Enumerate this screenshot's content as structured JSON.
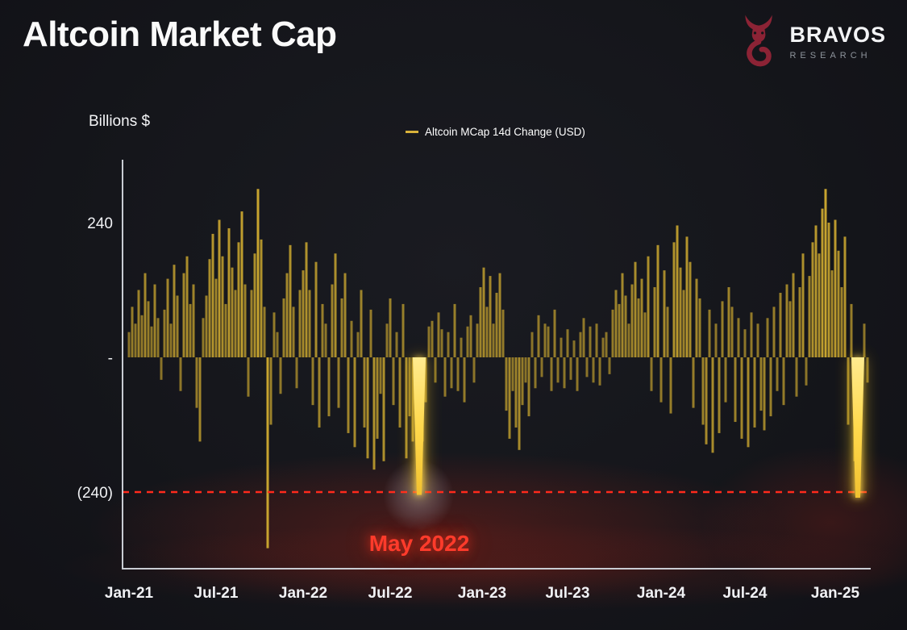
{
  "header": {
    "title": "Altcoin Market Cap"
  },
  "brand": {
    "name": "BRAVOS",
    "subtitle": "RESEARCH",
    "logo_color": "#8c2335"
  },
  "chart_data": {
    "type": "bar",
    "title": "Altcoin Market Cap",
    "ylabel": "Billions $",
    "legend": "Altcoin MCap 14d Change (USD)",
    "ylim": [
      -360,
      320
    ],
    "grid": false,
    "y_ticks": [
      {
        "label": "240",
        "value": 240
      },
      {
        "label": "-",
        "value": 0
      },
      {
        "label": "(240)",
        "value": -240
      }
    ],
    "x_ticks": [
      {
        "label": "Jan-21",
        "index": 0
      },
      {
        "label": "Jul-21",
        "index": 27
      },
      {
        "label": "Jan-22",
        "index": 54
      },
      {
        "label": "Jul-22",
        "index": 81
      },
      {
        "label": "Jan-23",
        "index": 109.5
      },
      {
        "label": "Jul-23",
        "index": 136
      },
      {
        "label": "Jan-24",
        "index": 165
      },
      {
        "label": "Jul-24",
        "index": 191
      },
      {
        "label": "Jan-25",
        "index": 219
      }
    ],
    "threshold": {
      "value": -240,
      "style": "dashed",
      "color": "#ff2a1c"
    },
    "annotation": {
      "text": "May 2022",
      "highlight_index": 90
    },
    "colors": {
      "bar": "#c7a42f",
      "highlight": "#ffd94d",
      "legend_marker": "#d9b23a",
      "annotation": "#ff3b2b",
      "axis": "#c9ccd3",
      "tick_text": "#f0f1f4"
    },
    "highlight_indices": [
      90,
      226
    ],
    "values": [
      45,
      90,
      60,
      120,
      75,
      150,
      100,
      55,
      130,
      70,
      -40,
      85,
      140,
      60,
      165,
      110,
      -60,
      150,
      180,
      95,
      130,
      -90,
      -150,
      70,
      110,
      175,
      220,
      140,
      245,
      180,
      95,
      230,
      160,
      120,
      205,
      260,
      130,
      -70,
      120,
      185,
      300,
      210,
      90,
      -340,
      -120,
      80,
      45,
      -65,
      105,
      150,
      200,
      90,
      -55,
      120,
      155,
      205,
      120,
      -85,
      170,
      -125,
      95,
      60,
      -105,
      130,
      185,
      -90,
      105,
      150,
      -135,
      65,
      -160,
      45,
      120,
      -125,
      -180,
      85,
      -200,
      -145,
      -65,
      -185,
      60,
      105,
      -85,
      45,
      -125,
      95,
      -180,
      -105,
      -150,
      -90,
      -245,
      -150,
      -80,
      55,
      65,
      -45,
      80,
      50,
      -70,
      45,
      -55,
      95,
      -60,
      35,
      -80,
      55,
      75,
      -45,
      60,
      125,
      160,
      90,
      145,
      60,
      115,
      150,
      85,
      -95,
      -145,
      -60,
      -125,
      -165,
      -85,
      -45,
      -105,
      45,
      -55,
      75,
      -35,
      60,
      55,
      -60,
      85,
      -45,
      35,
      -55,
      50,
      -40,
      30,
      -60,
      45,
      70,
      -35,
      55,
      -45,
      60,
      -50,
      35,
      45,
      -30,
      85,
      120,
      95,
      150,
      110,
      60,
      130,
      170,
      105,
      140,
      80,
      180,
      -60,
      125,
      200,
      -80,
      155,
      90,
      -100,
      205,
      235,
      160,
      120,
      215,
      170,
      -90,
      140,
      105,
      -120,
      -155,
      85,
      -170,
      60,
      -135,
      100,
      -80,
      125,
      90,
      -115,
      70,
      -145,
      50,
      -160,
      80,
      -125,
      60,
      -95,
      -130,
      70,
      -105,
      90,
      -60,
      115,
      -85,
      130,
      100,
      150,
      -70,
      125,
      185,
      -50,
      145,
      205,
      235,
      185,
      265,
      300,
      240,
      155,
      245,
      190,
      125,
      215,
      -120,
      95,
      -185,
      -250,
      -105,
      60,
      -45
    ]
  }
}
